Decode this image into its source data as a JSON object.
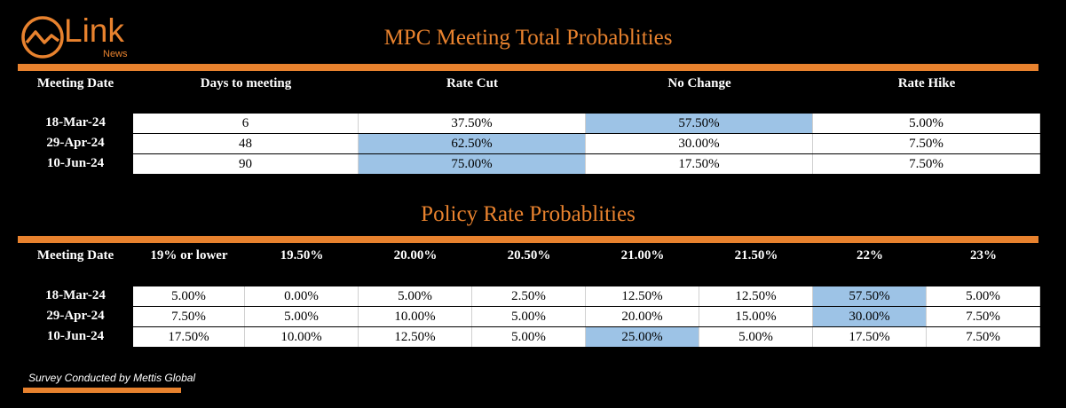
{
  "brand": {
    "name": "Link",
    "sub": "News",
    "color": "#e8822e"
  },
  "accent": "#e8822e",
  "highlight": "#9dc3e6",
  "table1": {
    "title": "MPC Meeting Total Probablities",
    "headers": [
      "Meeting Date",
      "Days to meeting",
      "Rate Cut",
      "No Change",
      "Rate Hike"
    ],
    "rows": [
      {
        "date": "18-Mar-24",
        "cells": [
          "6",
          "37.50%",
          "57.50%",
          "5.00%"
        ],
        "hl": 2
      },
      {
        "date": "29-Apr-24",
        "cells": [
          "48",
          "62.50%",
          "30.00%",
          "7.50%"
        ],
        "hl": 1
      },
      {
        "date": "10-Jun-24",
        "cells": [
          "90",
          "75.00%",
          "17.50%",
          "7.50%"
        ],
        "hl": 1
      }
    ]
  },
  "table2": {
    "title": "Policy Rate Probablities",
    "headers": [
      "Meeting Date",
      "19% or lower",
      "19.50%",
      "20.00%",
      "20.50%",
      "21.00%",
      "21.50%",
      "22%",
      "23%"
    ],
    "rows": [
      {
        "date": "18-Mar-24",
        "cells": [
          "5.00%",
          "0.00%",
          "5.00%",
          "2.50%",
          "12.50%",
          "12.50%",
          "57.50%",
          "5.00%"
        ],
        "hl": 6
      },
      {
        "date": "29-Apr-24",
        "cells": [
          "7.50%",
          "5.00%",
          "10.00%",
          "5.00%",
          "20.00%",
          "15.00%",
          "30.00%",
          "7.50%"
        ],
        "hl": 6
      },
      {
        "date": "10-Jun-24",
        "cells": [
          "17.50%",
          "10.00%",
          "12.50%",
          "5.00%",
          "25.00%",
          "5.00%",
          "17.50%",
          "7.50%"
        ],
        "hl": 4
      }
    ]
  },
  "footer": {
    "text": "Survey Conducted by Mettis Global"
  }
}
